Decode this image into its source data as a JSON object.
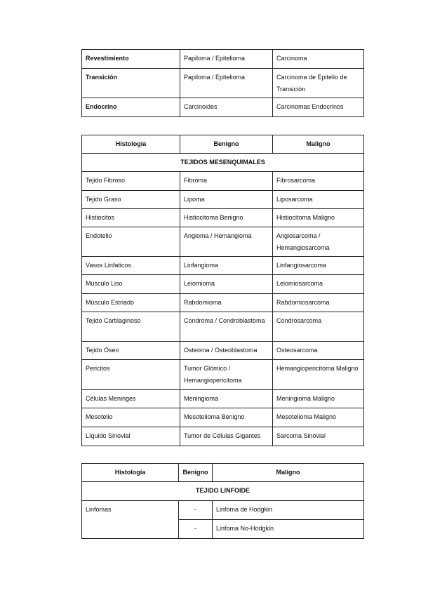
{
  "table1": {
    "rows": [
      [
        "Revestimiento",
        "Papiloma / Epitelioma",
        "Carcinoma"
      ],
      [
        "Transición",
        "Papiloma / Epitelioma",
        "Carcinoma de Epitelio de Transición"
      ],
      [
        "Endocrino",
        "Carcinoides",
        "Carcinomas Endocrinos"
      ]
    ]
  },
  "table2": {
    "headers": [
      "Histología",
      "Benigno",
      "Maligno"
    ],
    "section": "TEJIDOS MESENQUIMALES",
    "rows": [
      [
        "Tejido Fibroso",
        "Fibroma",
        "Fibrosarcoma"
      ],
      [
        "Tejido Graso",
        "Lipoma",
        "Liposarcoma"
      ],
      [
        "Histiocitos",
        "Histiocitoma Benigno",
        "Histiocitoma Maligno"
      ],
      [
        "Endotelio",
        "Angioma / Hemangioma",
        "Angiosarcoma / Hemangiosarcoma"
      ],
      [
        "Vasos Linfaticos",
        "Linfangioma",
        "Linfangiosarcoma"
      ],
      [
        "Músculo Liso",
        "Leiomioma",
        "Leiomiosarcoma"
      ],
      [
        "Músculo Estriado",
        "Rabdomioma",
        "Rabdomiosarcoma"
      ],
      [
        "Tejido Cartilaginoso",
        "Condroma / Condroblastoma",
        "Condrosarcoma"
      ],
      [
        "Tejido Óseo",
        "Osteoma / Osteoblastoma",
        "Osteosarcoma"
      ],
      [
        "Pericitos",
        "Tumor Glómico / Hemangiopericitoma",
        "Hemangiopericitoma Maligno"
      ],
      [
        "Células Meninges",
        "Meningioma",
        "Meningioma Maligno"
      ],
      [
        "Mesotelio",
        "Mesotelioma Benigno",
        "Mesotelioma Maligno"
      ],
      [
        "Líquido Sinovial",
        "Tumor de Células Gigantes",
        "Sarcoma Sinovial"
      ]
    ]
  },
  "table3": {
    "headers": [
      "Histología",
      "Benigno",
      "Maligno"
    ],
    "section": "TEJIDO LINFOIDE",
    "group": "Linfomas",
    "rows": [
      [
        "-",
        "Linfoma de Hodgkin"
      ],
      [
        "-",
        "Linfoma No-Hodgkin"
      ]
    ]
  }
}
